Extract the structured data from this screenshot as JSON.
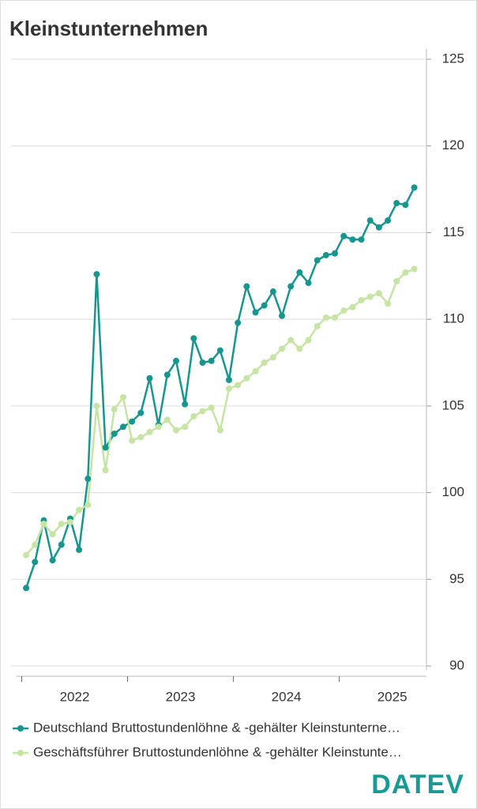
{
  "chart_data": {
    "type": "line",
    "title": "Kleinstunternehmen",
    "categories": [
      null,
      null,
      null,
      null,
      null,
      null,
      "2022",
      null,
      null,
      null,
      null,
      null,
      null,
      null,
      null,
      null,
      null,
      null,
      "2023",
      null,
      null,
      null,
      null,
      null,
      null,
      null,
      null,
      null,
      null,
      null,
      "2024",
      null,
      null,
      null,
      null,
      null,
      null,
      null,
      null,
      null,
      null,
      null,
      "2025",
      null,
      null
    ],
    "series": [
      {
        "name": "Deutschland Bruttostundenlöhne & -gehälter Kleinstunterne…",
        "color": "#17958f",
        "values": [
          94.5,
          96.0,
          98.4,
          96.1,
          97.0,
          98.5,
          96.7,
          100.8,
          112.6,
          102.6,
          103.4,
          103.8,
          104.1,
          104.6,
          106.6,
          103.9,
          106.8,
          107.6,
          105.1,
          108.9,
          107.5,
          107.6,
          108.2,
          106.5,
          109.8,
          111.9,
          110.4,
          110.8,
          111.6,
          110.2,
          111.9,
          112.7,
          112.1,
          113.4,
          113.7,
          113.8,
          114.8,
          114.6,
          114.6,
          115.7,
          115.3,
          115.7,
          116.7,
          116.6,
          117.6
        ]
      },
      {
        "name": "Geschäftsführer Bruttostundenlöhne & -gehälter Kleinstunte…",
        "color": "#c6e4a3",
        "values": [
          96.4,
          97.0,
          98.2,
          97.6,
          98.2,
          98.3,
          99.0,
          99.3,
          105.0,
          101.3,
          104.8,
          105.5,
          103.0,
          103.2,
          103.5,
          103.8,
          104.2,
          103.6,
          103.8,
          104.4,
          104.7,
          104.9,
          103.6,
          106.0,
          106.2,
          106.6,
          107.0,
          107.5,
          107.8,
          108.3,
          108.8,
          108.3,
          108.8,
          109.6,
          110.1,
          110.1,
          110.5,
          110.7,
          111.1,
          111.3,
          111.5,
          110.9,
          112.2,
          112.7,
          112.9
        ]
      }
    ],
    "ylim": [
      90,
      125
    ],
    "yticks": [
      90,
      95,
      100,
      105,
      110,
      115,
      120,
      125
    ],
    "grid": true,
    "y_axis_side": "right",
    "legend": "bottom"
  },
  "logo": "DATEV"
}
